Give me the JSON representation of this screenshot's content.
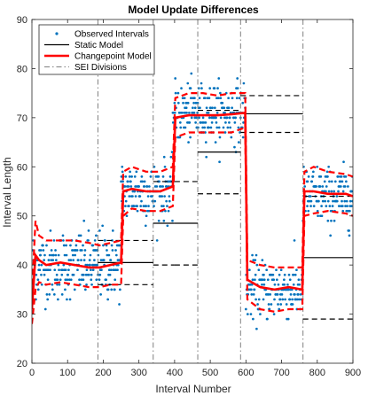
{
  "chart_data": {
    "type": "line",
    "title": "Model Update Differences",
    "xlabel": "Interval Number",
    "ylabel": "Interval Length",
    "xlim": [
      0,
      900
    ],
    "ylim": [
      20,
      90
    ],
    "xticks": [
      "0",
      "100",
      "200",
      "300",
      "400",
      "500",
      "600",
      "700",
      "800",
      "900"
    ],
    "yticks": [
      "20",
      "30",
      "40",
      "50",
      "60",
      "70",
      "80",
      "90"
    ],
    "grid": false,
    "legend_position": "top-left",
    "legend": [
      {
        "label": "Observed Intervals",
        "style": "dots",
        "color": "#0072BD"
      },
      {
        "label": "Static Model",
        "style": "solid",
        "color": "#000000"
      },
      {
        "label": "Changepoint Model",
        "style": "solid-thick",
        "color": "#FF0000"
      },
      {
        "label": "SEI Divisions",
        "style": "dashdot",
        "color": "#808080"
      }
    ],
    "sei_divisions": [
      185,
      340,
      465,
      585,
      760
    ],
    "observed_regimes": [
      {
        "x_start": 1,
        "x_end": 250,
        "mean": 40,
        "spread": 3.5
      },
      {
        "x_start": 250,
        "x_end": 395,
        "mean": 55,
        "spread": 3
      },
      {
        "x_start": 395,
        "x_end": 600,
        "mean": 71,
        "spread": 3
      },
      {
        "x_start": 600,
        "x_end": 760,
        "mean": 35,
        "spread": 3
      },
      {
        "x_start": 760,
        "x_end": 900,
        "mean": 54,
        "spread": 3
      }
    ],
    "static_model": [
      {
        "x_start": 185,
        "x_end": 340,
        "mean": 40.5,
        "upper": 45,
        "lower": 36
      },
      {
        "x_start": 340,
        "x_end": 400,
        "mean": 48.5,
        "upper": 57,
        "lower": 40
      },
      {
        "x_start": 400,
        "x_end": 465,
        "mean": 48.5,
        "upper": 57,
        "lower": 40
      },
      {
        "x_start": 465,
        "x_end": 585,
        "mean": 63,
        "upper": 71.5,
        "lower": 54.5
      },
      {
        "x_start": 585,
        "x_end": 760,
        "mean": 70.8,
        "upper": 74.5,
        "lower": 67
      },
      {
        "x_start": 760,
        "x_end": 900,
        "mean": 41.5,
        "upper": 54,
        "lower": 29
      }
    ],
    "changepoint_model": {
      "x": [
        0,
        10,
        20,
        40,
        80,
        120,
        160,
        190,
        220,
        250,
        256,
        280,
        320,
        360,
        395,
        402,
        440,
        480,
        520,
        560,
        598,
        604,
        640,
        680,
        720,
        758,
        764,
        790,
        830,
        880,
        900
      ],
      "mean": [
        31,
        42,
        41,
        40,
        40.5,
        40,
        39.5,
        39.5,
        40,
        40.5,
        55,
        55.5,
        55,
        55,
        56,
        70,
        70.5,
        70.5,
        70.5,
        70.7,
        71,
        37,
        35.5,
        35,
        35.5,
        35,
        55,
        55,
        54.5,
        54.5,
        54
      ],
      "upper": [
        34,
        49,
        46,
        45,
        45,
        45,
        44.5,
        44,
        44.5,
        45,
        59,
        60,
        59,
        59,
        60,
        74,
        75,
        75,
        74.5,
        75,
        75,
        41,
        40,
        39.5,
        39.5,
        39.5,
        59,
        60,
        59,
        58.5,
        58
      ],
      "lower": [
        28,
        35,
        36.5,
        36,
        36.5,
        36,
        35.5,
        35.5,
        36,
        36,
        50,
        51.5,
        51,
        51,
        52,
        66,
        67,
        67,
        67,
        67,
        68,
        33,
        31,
        30.5,
        31,
        31,
        50,
        50.5,
        51,
        50.5,
        50
      ]
    }
  },
  "colors": {
    "observed": "#0072BD",
    "static": "#000000",
    "changepoint": "#FF0000",
    "sei": "#808080"
  }
}
